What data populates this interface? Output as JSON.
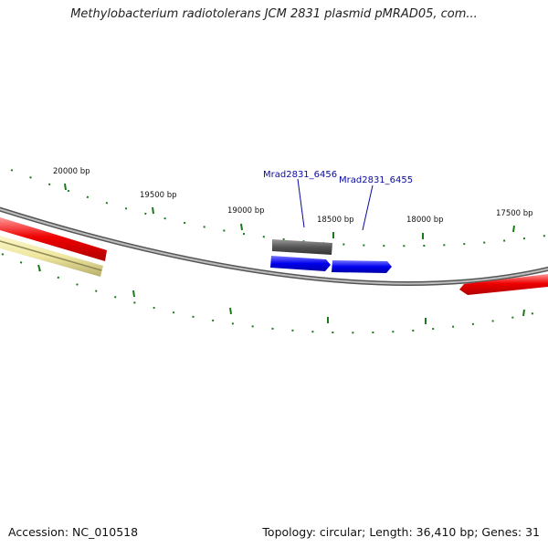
{
  "title": "Methylobacterium radiotolerans JCM 2831 plasmid pMRAD05, com...",
  "footer": {
    "accession": "Accession: NC_010518",
    "summary": "Topology: circular; Length: 36,410 bp; Genes: 31"
  },
  "ticks": [
    {
      "label": "20000 bp"
    },
    {
      "label": "19500 bp"
    },
    {
      "label": "19000 bp"
    },
    {
      "label": "18500 bp"
    },
    {
      "label": "18000 bp"
    },
    {
      "label": "17500 bp"
    }
  ],
  "genes": [
    {
      "label": "Mrad2831_6456",
      "color": "#555555"
    },
    {
      "label": "Mrad2831_6455",
      "color": "#0000ee"
    }
  ],
  "colors": {
    "backbone": "#8a8a8a",
    "feature_red": "#ee0000",
    "feature_yellow": "#efe7a0",
    "feature_gray": "#555555",
    "feature_blue": "#0000ee",
    "tick": "#1a7a1a",
    "gene_label": "#0a0aa0"
  }
}
